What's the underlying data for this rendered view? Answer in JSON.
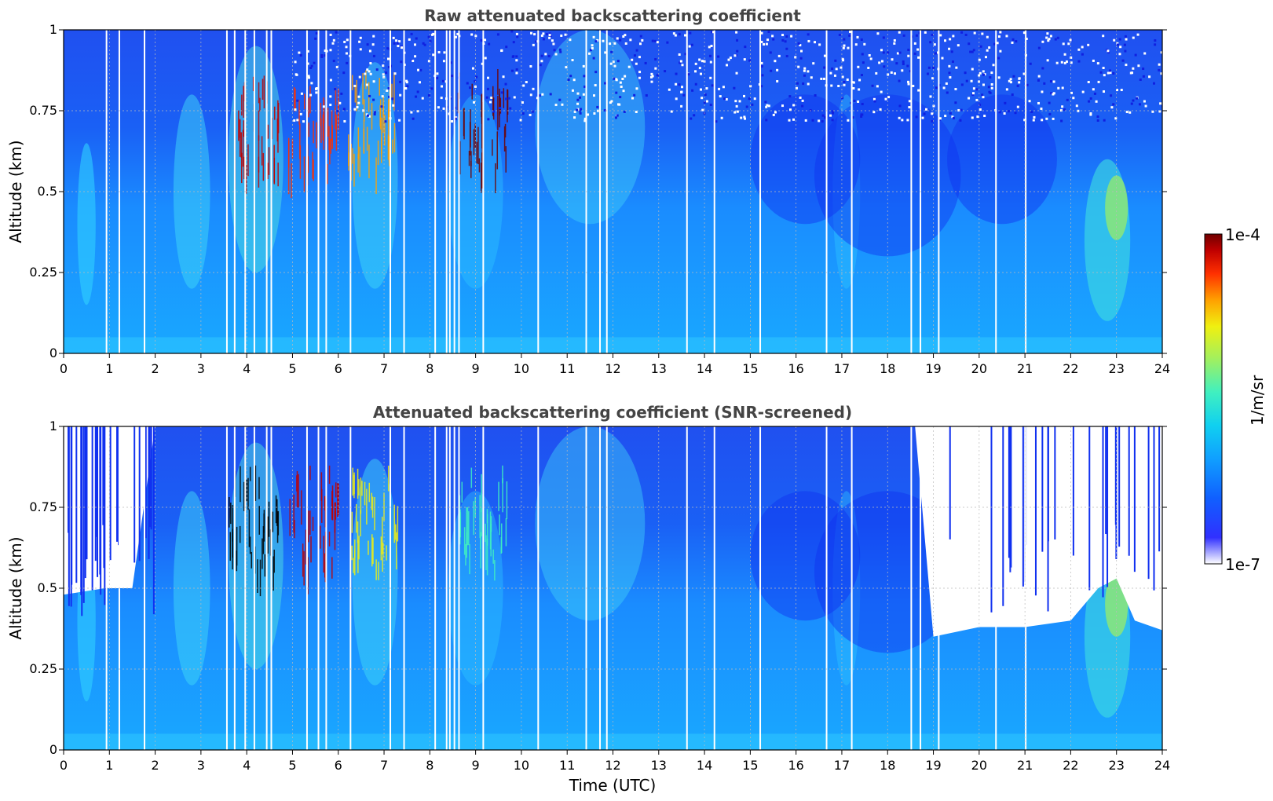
{
  "figure": {
    "xlabel": "Time (UTC)",
    "colorbar": {
      "label": "1/m/sr",
      "max_label": "1e-4",
      "min_label": "1e-7",
      "colors": [
        "#ffffff",
        "#2020ff",
        "#1060ff",
        "#10a0ff",
        "#10d0f0",
        "#40f0c0",
        "#a0f060",
        "#f0f010",
        "#ffa000",
        "#ff3000",
        "#c00000",
        "#700000"
      ]
    }
  },
  "chart_data": [
    {
      "type": "heatmap",
      "title": "Raw attenuated backscattering coefficient",
      "xlabel": "",
      "ylabel": "Altitude (km)",
      "xlim": [
        0,
        24
      ],
      "ylim": [
        0,
        1
      ],
      "x_ticks": [
        "0",
        "1",
        "2",
        "3",
        "4",
        "5",
        "6",
        "7",
        "8",
        "9",
        "10",
        "11",
        "12",
        "13",
        "14",
        "15",
        "16",
        "17",
        "18",
        "19",
        "20",
        "21",
        "22",
        "23",
        "24"
      ],
      "y_ticks": [
        "0",
        "0.25",
        "0.5",
        "0.75",
        "1"
      ],
      "grid": true,
      "colorscale": "log",
      "color_range": [
        1e-07,
        0.0001
      ],
      "units": "1/m/sr",
      "data_gaps_hours": [
        0.92,
        1.2,
        1.75,
        3.55,
        3.72,
        3.95,
        4.15,
        4.42,
        4.52,
        5.3,
        5.55,
        5.72,
        6.25,
        7.12,
        7.42,
        8.1,
        8.35,
        8.42,
        8.52,
        8.62,
        9.15,
        10.35,
        11.4,
        11.7,
        11.85,
        13.6,
        14.2,
        15.2,
        16.65,
        17.2,
        18.5,
        18.7,
        19.1,
        20.35,
        21.0
      ]
    },
    {
      "type": "heatmap",
      "title": "Attenuated backscattering coefficient (SNR-screened)",
      "xlabel": "Time (UTC)",
      "ylabel": "Altitude (km)",
      "xlim": [
        0,
        24
      ],
      "ylim": [
        0,
        1
      ],
      "x_ticks": [
        "0",
        "1",
        "2",
        "3",
        "4",
        "5",
        "6",
        "7",
        "8",
        "9",
        "10",
        "11",
        "12",
        "13",
        "14",
        "15",
        "16",
        "17",
        "18",
        "19",
        "20",
        "21",
        "22",
        "23",
        "24"
      ],
      "y_ticks": [
        "0",
        "0.25",
        "0.5",
        "0.75",
        "1"
      ],
      "grid": true,
      "colorscale": "log",
      "color_range": [
        1e-07,
        0.0001
      ],
      "units": "1/m/sr",
      "data_gaps_hours": [
        0.92,
        1.2,
        1.75,
        3.55,
        3.72,
        3.95,
        4.15,
        4.42,
        4.52,
        5.3,
        5.55,
        5.72,
        6.25,
        7.12,
        7.42,
        8.1,
        8.35,
        8.42,
        8.52,
        8.62,
        9.15,
        10.35,
        11.4,
        11.7,
        11.85,
        13.6,
        14.2,
        15.2,
        16.65,
        17.2,
        18.5,
        18.7,
        19.1,
        20.35,
        21.0
      ],
      "screened_top_km": [
        [
          0,
          0.48
        ],
        [
          0.9,
          0.5
        ],
        [
          1.5,
          0.5
        ],
        [
          2,
          1
        ],
        [
          18.6,
          1
        ],
        [
          19,
          0.35
        ],
        [
          20,
          0.38
        ],
        [
          21,
          0.38
        ],
        [
          22,
          0.4
        ],
        [
          22.6,
          0.5
        ],
        [
          23,
          0.53
        ],
        [
          23.4,
          0.4
        ],
        [
          24,
          0.37
        ]
      ]
    }
  ]
}
